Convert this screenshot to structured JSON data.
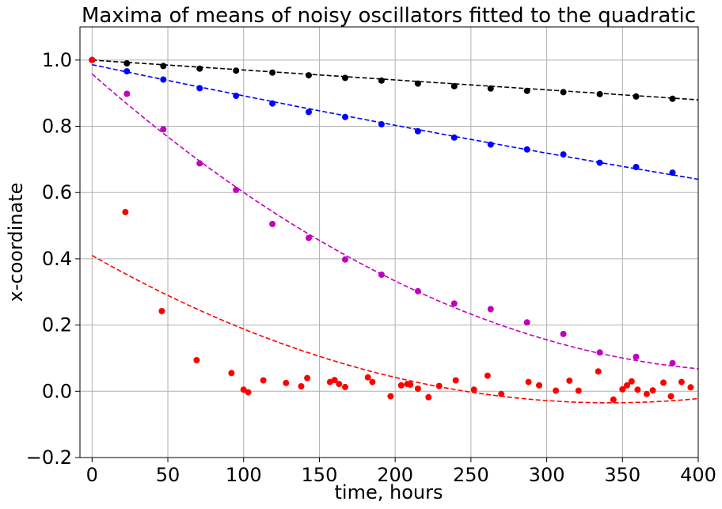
{
  "chart_data": {
    "type": "scatter",
    "title": "Maxima of means of noisy oscillators fitted to the quadratic",
    "xlabel": "time, hours",
    "ylabel": "x-coordinate",
    "xlim": [
      -8,
      400
    ],
    "ylim": [
      -0.2,
      1.1
    ],
    "xticks": [
      0,
      50,
      100,
      150,
      200,
      250,
      300,
      350,
      400
    ],
    "yticks": [
      -0.2,
      0.0,
      0.2,
      0.4,
      0.6,
      0.8,
      1.0
    ],
    "ytick_labels": [
      "−0.2",
      "0.0",
      "0.2",
      "0.4",
      "0.6",
      "0.8",
      "1.0"
    ],
    "grid": true,
    "series": [
      {
        "color": "#000000",
        "points": [
          [
            0,
            1.0
          ],
          [
            23,
            0.99
          ],
          [
            47,
            0.982
          ],
          [
            71,
            0.974
          ],
          [
            95,
            0.968
          ],
          [
            119,
            0.962
          ],
          [
            143,
            0.954
          ],
          [
            167,
            0.946
          ],
          [
            191,
            0.938
          ],
          [
            215,
            0.929
          ],
          [
            239,
            0.921
          ],
          [
            263,
            0.914
          ],
          [
            287,
            0.907
          ],
          [
            311,
            0.903
          ],
          [
            335,
            0.897
          ],
          [
            359,
            0.89
          ],
          [
            383,
            0.883
          ]
        ],
        "fit": {
          "a": 0.0,
          "b": -0.0003,
          "c": 1.0
        }
      },
      {
        "color": "#0000ff",
        "points": [
          [
            0,
            1.0
          ],
          [
            23,
            0.966
          ],
          [
            47,
            0.941
          ],
          [
            71,
            0.915
          ],
          [
            95,
            0.892
          ],
          [
            119,
            0.869
          ],
          [
            143,
            0.843
          ],
          [
            167,
            0.828
          ],
          [
            191,
            0.806
          ],
          [
            215,
            0.785
          ],
          [
            239,
            0.766
          ],
          [
            263,
            0.745
          ],
          [
            287,
            0.73
          ],
          [
            311,
            0.715
          ],
          [
            335,
            0.69
          ],
          [
            359,
            0.677
          ],
          [
            383,
            0.66
          ]
        ],
        "fit": {
          "a": 2.5e-07,
          "b": -0.000965,
          "c": 0.986
        }
      },
      {
        "color": "#c000c0",
        "points": [
          [
            23,
            0.898
          ],
          [
            47,
            0.791
          ],
          [
            71,
            0.688
          ],
          [
            95,
            0.608
          ],
          [
            119,
            0.505
          ],
          [
            143,
            0.463
          ],
          [
            167,
            0.398
          ],
          [
            191,
            0.352
          ],
          [
            215,
            0.302
          ],
          [
            239,
            0.265
          ],
          [
            263,
            0.248
          ],
          [
            287,
            0.208
          ],
          [
            311,
            0.173
          ],
          [
            335,
            0.117
          ],
          [
            359,
            0.104
          ],
          [
            383,
            0.085
          ]
        ],
        "fit": {
          "a": 4.5e-06,
          "b": -0.004025,
          "c": 0.958
        }
      },
      {
        "color": "#ff0000",
        "points": [
          [
            0,
            1.0
          ],
          [
            22,
            0.541
          ],
          [
            46,
            0.242
          ],
          [
            69,
            0.094
          ],
          [
            92,
            0.055
          ],
          [
            100,
            0.005
          ],
          [
            103,
            -0.003
          ],
          [
            113,
            0.033
          ],
          [
            128,
            0.025
          ],
          [
            138,
            0.015
          ],
          [
            142,
            0.04
          ],
          [
            157,
            0.028
          ],
          [
            160,
            0.034
          ],
          [
            163,
            0.022
          ],
          [
            167,
            0.013
          ],
          [
            182,
            0.042
          ],
          [
            185,
            0.028
          ],
          [
            197,
            -0.015
          ],
          [
            204,
            0.018
          ],
          [
            208,
            0.022
          ],
          [
            210,
            0.02
          ],
          [
            215,
            0.008
          ],
          [
            222,
            -0.018
          ],
          [
            229,
            0.016
          ],
          [
            240,
            0.033
          ],
          [
            252,
            0.005
          ],
          [
            261,
            0.047
          ],
          [
            270,
            -0.008
          ],
          [
            288,
            0.028
          ],
          [
            295,
            0.018
          ],
          [
            306,
            0.002
          ],
          [
            315,
            0.032
          ],
          [
            321,
            0.002
          ],
          [
            334,
            0.06
          ],
          [
            344,
            -0.025
          ],
          [
            350,
            0.006
          ],
          [
            353,
            0.018
          ],
          [
            356,
            0.03
          ],
          [
            360,
            0.005
          ],
          [
            366,
            -0.008
          ],
          [
            370,
            0.003
          ],
          [
            377,
            0.026
          ],
          [
            382,
            -0.015
          ],
          [
            389,
            0.028
          ],
          [
            395,
            0.012
          ]
        ],
        "fit": {
          "a": 3.8e-06,
          "b": -0.0026,
          "c": 0.41
        }
      }
    ]
  }
}
